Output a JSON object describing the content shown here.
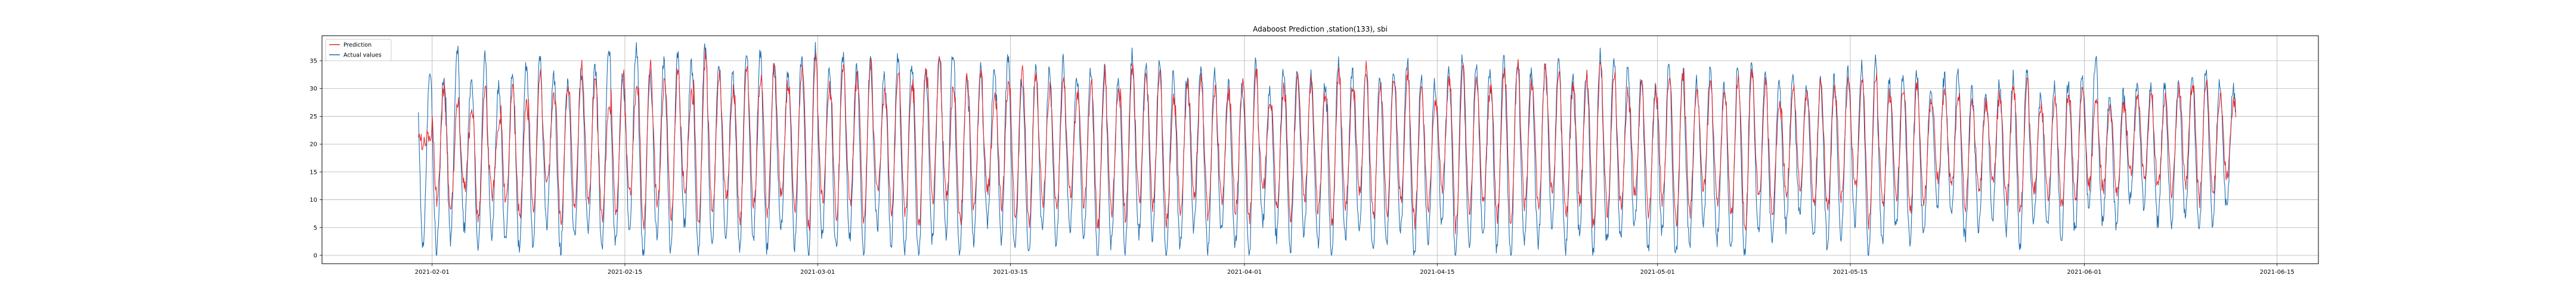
{
  "chart_data": {
    "type": "line",
    "title": "Adaboost Prediction ,station(133), sbi",
    "xlabel": "",
    "ylabel": "",
    "x_range": [
      "2021-01-24",
      "2021-06-18"
    ],
    "ylim": [
      -1.5,
      39.5
    ],
    "y_ticks": [
      0,
      5,
      10,
      15,
      20,
      25,
      30,
      35
    ],
    "x_ticks": [
      "2021-02-01",
      "2021-02-15",
      "2021-03-01",
      "2021-03-15",
      "2021-04-01",
      "2021-04-15",
      "2021-05-01",
      "2021-05-15",
      "2021-06-01",
      "2021-06-15"
    ],
    "grid": true,
    "legend_position": "top-left",
    "data_start": "2021-01-31",
    "data_end": "2021-06-12",
    "points_per_day": 24,
    "series": [
      {
        "name": "Prediction",
        "color": "#e8282d",
        "daily_peaks": [
          22,
          30,
          28,
          25,
          31,
          24,
          30,
          27,
          33,
          29,
          31,
          34,
          32,
          28,
          33,
          30,
          35,
          31,
          34,
          29,
          36,
          33,
          30,
          34,
          32,
          35,
          31,
          33,
          36,
          30,
          34,
          32,
          35,
          29,
          33,
          31,
          34,
          36,
          30,
          32,
          33,
          28,
          31,
          34,
          33,
          30,
          32,
          29,
          31,
          33,
          30,
          34,
          32,
          33,
          28,
          31,
          32,
          30,
          29,
          31,
          33,
          27,
          30,
          32,
          31,
          29,
          33,
          30,
          34,
          31,
          32,
          33,
          30,
          28,
          31,
          34,
          32,
          30,
          33,
          35,
          31,
          34,
          33,
          30,
          32,
          35,
          33,
          29,
          31,
          30,
          32,
          33,
          30,
          31,
          29,
          32,
          33,
          31,
          28,
          30,
          29,
          31,
          30,
          32,
          31,
          33,
          29,
          30,
          31,
          28,
          30,
          29,
          28,
          27,
          29,
          30,
          31,
          27,
          28,
          29,
          30,
          28,
          26,
          27,
          28,
          29,
          28,
          30,
          31,
          32,
          29,
          28,
          30,
          27,
          29,
          26
        ],
        "daily_troughs": [
          20,
          10,
          8,
          12,
          6,
          11,
          9,
          7,
          8,
          13,
          6,
          9,
          10,
          7,
          8,
          11,
          5,
          9,
          7,
          12,
          6,
          8,
          10,
          6,
          9,
          7,
          11,
          8,
          5,
          10,
          7,
          9,
          6,
          11,
          8,
          7,
          5,
          9,
          10,
          6,
          8,
          12,
          9,
          7,
          6,
          10,
          8,
          11,
          9,
          5,
          8,
          7,
          10,
          9,
          6,
          8,
          11,
          7,
          10,
          8,
          6,
          12,
          9,
          7,
          10,
          8,
          6,
          9,
          11,
          7,
          8,
          10,
          6,
          9,
          12,
          5,
          8,
          10,
          7,
          6,
          9,
          8,
          11,
          7,
          10,
          5,
          8,
          9,
          11,
          7,
          10,
          6,
          8,
          12,
          9,
          7,
          5,
          10,
          8,
          11,
          13,
          9,
          8,
          10,
          12,
          6,
          9,
          11,
          8,
          10,
          14,
          12,
          9,
          11,
          13,
          10,
          8,
          12,
          11,
          9,
          10,
          13,
          12,
          11,
          15,
          14,
          12,
          11,
          13,
          10,
          12,
          14,
          8,
          11,
          7,
          15
        ],
        "values": [
          22.1,
          30.4,
          28.0,
          25.2,
          31.5,
          24.3,
          30.1,
          27.6,
          33.2,
          29.4,
          31.0,
          34.3,
          32.1,
          28.5,
          33.4,
          30.2,
          35.1,
          31.3,
          34.0,
          29.7,
          36.2,
          33.1,
          30.0,
          34.4,
          32.0,
          35.2,
          31.1,
          33.3,
          36.0,
          30.4,
          34.2,
          32.3,
          35.0,
          29.1,
          33.4,
          31.0,
          34.1,
          36.2,
          30.3,
          32.0,
          33.5,
          28.1,
          31.3,
          34.0,
          33.2,
          30.1,
          32.4,
          29.0,
          31.2,
          33.0,
          30.3,
          34.1,
          32.0,
          33.3,
          28.2,
          31.0,
          32.1,
          30.4,
          29.2,
          31.0,
          33.1,
          27.3,
          30.0,
          32.2,
          31.1,
          29.0,
          33.2,
          30.1,
          34.0,
          31.2,
          32.1,
          33.0,
          30.3,
          28.1,
          31.0,
          34.2,
          32.1,
          30.0,
          33.3,
          35.1,
          31.0,
          34.2,
          33.1,
          30.0,
          32.3,
          35.0,
          33.2,
          29.1,
          31.0,
          30.2,
          32.1,
          33.0,
          30.3,
          31.1,
          29.0,
          32.2,
          33.1,
          31.0,
          28.3,
          30.1,
          29.2,
          31.0,
          30.3,
          32.1,
          31.0,
          33.2,
          29.1,
          30.0,
          31.2,
          28.1,
          30.0,
          29.3,
          28.1,
          27.0,
          29.2,
          30.1,
          31.0,
          27.2,
          28.1,
          29.0,
          30.3,
          28.2,
          26.1,
          27.0,
          28.2,
          29.1,
          28.0,
          30.2,
          31.1,
          32.0,
          29.3,
          28.1,
          30.0,
          27.2,
          29.1,
          26.0
        ]
      },
      {
        "name": "Actual values",
        "color": "#1f6db0",
        "daily_peaks": [
          33,
          32,
          37,
          31,
          36,
          30,
          33,
          34,
          35,
          32,
          31,
          33,
          34,
          38,
          32,
          37,
          33,
          35,
          36,
          34,
          38,
          35,
          33,
          37,
          36,
          34,
          32,
          35,
          37,
          33,
          36,
          34,
          35,
          32,
          36,
          34,
          33,
          35,
          37,
          32,
          34,
          33,
          36,
          31,
          34,
          33,
          35,
          32,
          33,
          34,
          31,
          36,
          34,
          35,
          33,
          32,
          34,
          33,
          31,
          30,
          35,
          29,
          33,
          34,
          32,
          31,
          35,
          33,
          34,
          32,
          33,
          35,
          32,
          31,
          33,
          36,
          34,
          33,
          36,
          35,
          33,
          34,
          36,
          32,
          33,
          36,
          35,
          33,
          32,
          30,
          34,
          33,
          31,
          33,
          30,
          34,
          35,
          33,
          31,
          32,
          30,
          31,
          32,
          33,
          34,
          35,
          31,
          32,
          33,
          30,
          32,
          33,
          30,
          29,
          31,
          32,
          33,
          29,
          30,
          31,
          33,
          36,
          28,
          29,
          30,
          31,
          30,
          31,
          32,
          33,
          31,
          30,
          31,
          29,
          28,
          25
        ],
        "daily_troughs": [
          2,
          1,
          3,
          5,
          1,
          4,
          2,
          1,
          2,
          6,
          1,
          3,
          4,
          1,
          2,
          5,
          0,
          3,
          1,
          6,
          0,
          2,
          4,
          1,
          3,
          1,
          5,
          2,
          0,
          4,
          1,
          3,
          0,
          5,
          2,
          1,
          0,
          3,
          4,
          0,
          2,
          6,
          3,
          1,
          0,
          4,
          2,
          5,
          3,
          0,
          2,
          1,
          4,
          3,
          0,
          2,
          5,
          1,
          4,
          2,
          0,
          6,
          3,
          1,
          4,
          2,
          0,
          3,
          5,
          1,
          2,
          4,
          0,
          3,
          6,
          0,
          2,
          4,
          1,
          0,
          3,
          2,
          5,
          1,
          4,
          0,
          2,
          3,
          5,
          1,
          4,
          0,
          2,
          6,
          3,
          1,
          0,
          4,
          2,
          5,
          8,
          3,
          2,
          4,
          6,
          0,
          3,
          5,
          2,
          4,
          9,
          7,
          3,
          5,
          7,
          4,
          2,
          6,
          5,
          3,
          4,
          8,
          6,
          5,
          10,
          9,
          6,
          5,
          7,
          4,
          6,
          9,
          2,
          5,
          1,
          13
        ]
      }
    ]
  }
}
